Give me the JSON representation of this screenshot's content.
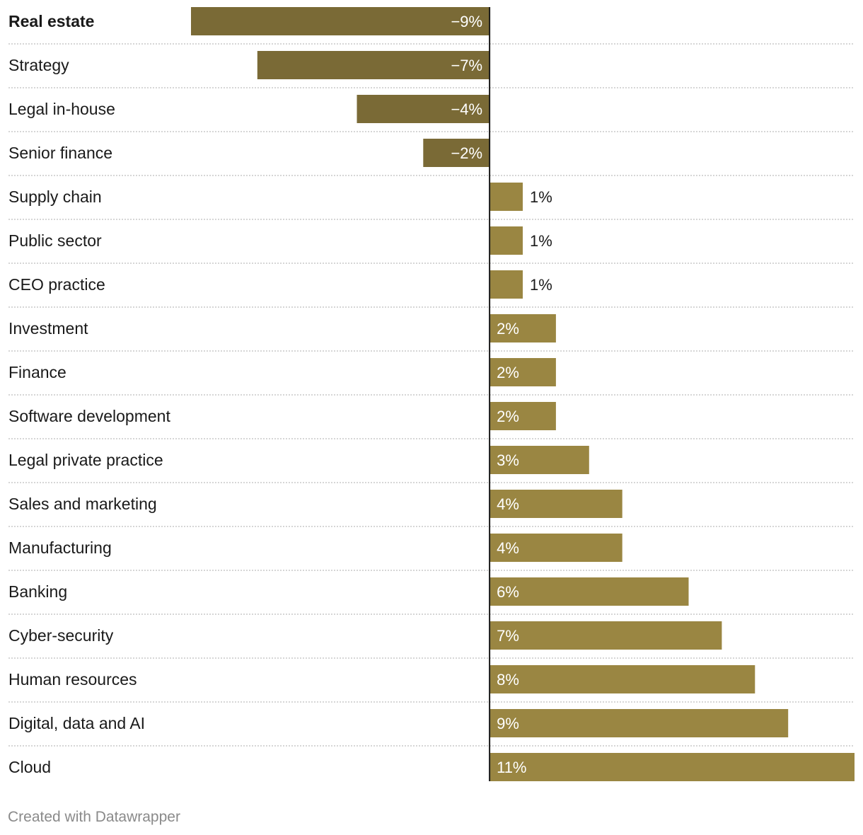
{
  "chart_data": {
    "type": "bar",
    "orientation": "horizontal",
    "categories": [
      "Real estate",
      "Strategy",
      "Legal in-house",
      "Senior finance",
      "Supply chain",
      "Public sector",
      "CEO practice",
      "Investment",
      "Finance",
      "Software development",
      "Legal private practice",
      "Sales and marketing",
      "Manufacturing",
      "Banking",
      "Cyber-security",
      "Human resources",
      "Digital, data and AI",
      "Cloud"
    ],
    "values": [
      -9,
      -7,
      -4,
      -2,
      1,
      1,
      1,
      2,
      2,
      2,
      3,
      4,
      4,
      6,
      7,
      8,
      9,
      11
    ],
    "value_labels": [
      "−9%",
      "−7%",
      "−4%",
      "−2%",
      "1%",
      "1%",
      "1%",
      "2%",
      "2%",
      "2%",
      "3%",
      "4%",
      "4%",
      "6%",
      "7%",
      "8%",
      "9%",
      "11%"
    ],
    "highlighted_category": "Real estate",
    "xlim": [
      -9,
      11
    ],
    "colors": {
      "negative": "#7a6a36",
      "positive": "#9a8642",
      "baseline": "#1a1a1a",
      "grid": "#c8c8c8",
      "label": "#1a1a1a",
      "outside_value": "#1a1a1a",
      "inside_value": "#ffffff"
    }
  },
  "footer": {
    "credit": "Created with Datawrapper"
  }
}
